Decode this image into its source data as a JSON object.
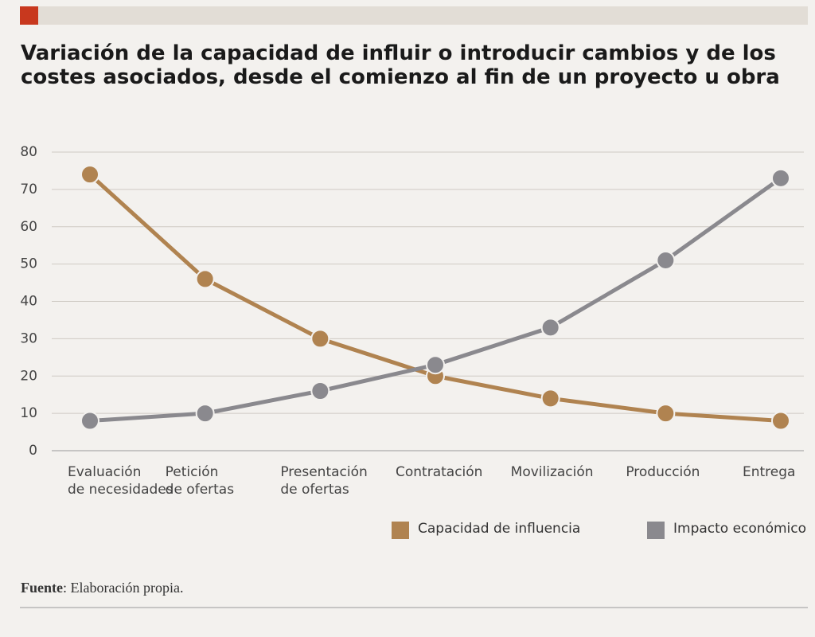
{
  "chart_data": {
    "type": "line",
    "title": "Variación de la capacidad de influir o introducir cambios y de los costes asociados, desde el comienzo al fin de un proyecto u obra",
    "categories": [
      "Evaluación\nde necesidades",
      "Petición\nde ofertas",
      "Presentación\nde ofertas",
      "Contratación",
      "Movilización",
      "Producción",
      "Entrega"
    ],
    "series": [
      {
        "name": "Capacidad de influencia",
        "color": "#b08350",
        "values": [
          74,
          46,
          30,
          20,
          14,
          10,
          8
        ]
      },
      {
        "name": "Impacto económico",
        "color": "#8a898e",
        "values": [
          8,
          10,
          16,
          23,
          33,
          51,
          73
        ]
      }
    ],
    "ylim": [
      0,
      80
    ],
    "yticks": [
      0,
      10,
      20,
      30,
      40,
      50,
      60,
      70,
      80
    ],
    "grid": true,
    "source_label": "Fuente",
    "source_text": ": Elaboración propia."
  }
}
